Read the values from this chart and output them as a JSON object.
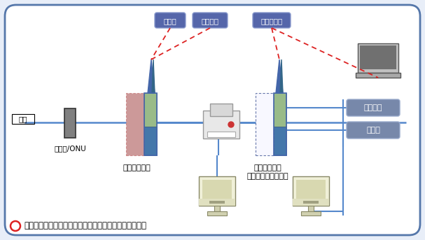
{
  "bg_outer": "#e8eef8",
  "bg_inner": "#ffffff",
  "border_color": "#5577aa",
  "line_color": "#5588cc",
  "line_color2": "#4477bb",
  "dashed_color": "#dd2222",
  "kaisen_label": "回線",
  "modem_label": "モデム/ONU",
  "router1_label": "無線ルーター",
  "router2_label": "無線ルーター\n（ブリッジモード）",
  "wifi_labels": [
    "スマホ",
    "ゲーム機",
    "タブレット"
  ],
  "wired_label1": "ゲーム機",
  "wired_label2": "テレビ",
  "caption": "無線ルーターに無線ルーター（ブリッジモード）を追加",
  "router_top_color": "#6699bb",
  "router_ant_color": "#4466aa",
  "router_green": "#99bb88",
  "router1_pink": "#cc9999",
  "router_blue": "#4477aa",
  "router2_white": "#f8f8ff",
  "wifi_box_bg": "#5566aa",
  "wifi_box_border": "#8899cc",
  "wired_box_bg": "#7788aa",
  "wired_box_border": "#99aacc",
  "modem_fill": "#808080",
  "modem_border": "#333333",
  "cable_gray": "#999999"
}
